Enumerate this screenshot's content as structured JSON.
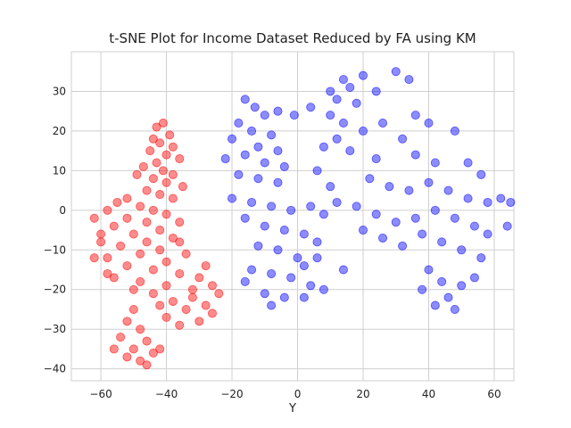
{
  "chart_data": {
    "type": "scatter",
    "title": "t-SNE Plot for Income Dataset Reduced by FA using KM",
    "xlabel": "Y",
    "ylabel": "",
    "xlim": [
      -69,
      66
    ],
    "ylim": [
      -43,
      40
    ],
    "xticks": [
      -60,
      -40,
      -20,
      0,
      20,
      40,
      60
    ],
    "yticks": [
      -40,
      -30,
      -20,
      -10,
      0,
      10,
      20,
      30
    ],
    "grid": true,
    "colors": {
      "red": "#ff0000",
      "blue": "#0000ff",
      "grid": "#cfcfcf"
    },
    "series": [
      {
        "color": "#ff0000",
        "points": [
          [
            -43,
            21
          ],
          [
            -41,
            22
          ],
          [
            -39,
            19
          ],
          [
            -44,
            18
          ],
          [
            -42,
            17
          ],
          [
            -38,
            16
          ],
          [
            -45,
            15
          ],
          [
            -40,
            14
          ],
          [
            -36,
            13
          ],
          [
            -43,
            12
          ],
          [
            -47,
            11
          ],
          [
            -41,
            10
          ],
          [
            -38,
            9
          ],
          [
            -49,
            9
          ],
          [
            -44,
            8
          ],
          [
            -40,
            7
          ],
          [
            -35,
            6
          ],
          [
            -46,
            5
          ],
          [
            -42,
            4
          ],
          [
            -52,
            3
          ],
          [
            -38,
            3
          ],
          [
            -55,
            2
          ],
          [
            -48,
            1
          ],
          [
            -44,
            0
          ],
          [
            -58,
            0
          ],
          [
            -40,
            -1
          ],
          [
            -52,
            -2
          ],
          [
            -62,
            -2
          ],
          [
            -46,
            -3
          ],
          [
            -36,
            -3
          ],
          [
            -56,
            -4
          ],
          [
            -42,
            -5
          ],
          [
            -50,
            -6
          ],
          [
            -60,
            -6
          ],
          [
            -38,
            -7
          ],
          [
            -46,
            -8
          ],
          [
            -54,
            -9
          ],
          [
            -42,
            -10
          ],
          [
            -34,
            -11
          ],
          [
            -48,
            -11
          ],
          [
            -58,
            -12
          ],
          [
            -40,
            -13
          ],
          [
            -52,
            -14
          ],
          [
            -44,
            -15
          ],
          [
            -36,
            -16
          ],
          [
            -56,
            -17
          ],
          [
            -48,
            -18
          ],
          [
            -40,
            -19
          ],
          [
            -30,
            -17
          ],
          [
            -26,
            -19
          ],
          [
            -24,
            -21
          ],
          [
            -32,
            -22
          ],
          [
            -28,
            -24
          ],
          [
            -38,
            -23
          ],
          [
            -44,
            -21
          ],
          [
            -34,
            -25
          ],
          [
            -26,
            -26
          ],
          [
            -40,
            -27
          ],
          [
            -30,
            -28
          ],
          [
            -36,
            -29
          ],
          [
            -50,
            -25
          ],
          [
            -52,
            -28
          ],
          [
            -48,
            -30
          ],
          [
            -54,
            -32
          ],
          [
            -46,
            -33
          ],
          [
            -50,
            -35
          ],
          [
            -56,
            -35
          ],
          [
            -44,
            -36
          ],
          [
            -48,
            -38
          ],
          [
            -52,
            -37
          ],
          [
            -46,
            -39
          ],
          [
            -42,
            -35
          ],
          [
            -60,
            -8
          ],
          [
            -62,
            -12
          ],
          [
            -58,
            -16
          ],
          [
            -50,
            -20
          ],
          [
            -42,
            -24
          ],
          [
            -32,
            -20
          ],
          [
            -28,
            -14
          ],
          [
            -36,
            -8
          ]
        ]
      },
      {
        "color": "#0000ff",
        "points": [
          [
            -16,
            28
          ],
          [
            -13,
            26
          ],
          [
            -10,
            24
          ],
          [
            -18,
            22
          ],
          [
            -14,
            20
          ],
          [
            -8,
            19
          ],
          [
            -20,
            18
          ],
          [
            -12,
            16
          ],
          [
            -6,
            15
          ],
          [
            -16,
            14
          ],
          [
            -22,
            13
          ],
          [
            -10,
            12
          ],
          [
            -4,
            11
          ],
          [
            -18,
            9
          ],
          [
            -12,
            8
          ],
          [
            -6,
            7
          ],
          [
            -20,
            3
          ],
          [
            -14,
            2
          ],
          [
            -8,
            1
          ],
          [
            -2,
            0
          ],
          [
            4,
            1
          ],
          [
            8,
            -1
          ],
          [
            -16,
            -2
          ],
          [
            -10,
            -4
          ],
          [
            -4,
            -5
          ],
          [
            2,
            -6
          ],
          [
            6,
            -8
          ],
          [
            -12,
            -9
          ],
          [
            -6,
            -10
          ],
          [
            0,
            -12
          ],
          [
            -14,
            -15
          ],
          [
            -8,
            -16
          ],
          [
            -2,
            -17
          ],
          [
            4,
            -19
          ],
          [
            -10,
            -21
          ],
          [
            -4,
            -22
          ],
          [
            -16,
            -18
          ],
          [
            2,
            -14
          ],
          [
            -8,
            -24
          ],
          [
            6,
            -12
          ],
          [
            10,
            30
          ],
          [
            14,
            33
          ],
          [
            12,
            28
          ],
          [
            16,
            31
          ],
          [
            20,
            34
          ],
          [
            24,
            30
          ],
          [
            30,
            35
          ],
          [
            34,
            33
          ],
          [
            18,
            27
          ],
          [
            10,
            24
          ],
          [
            14,
            22
          ],
          [
            20,
            20
          ],
          [
            26,
            22
          ],
          [
            36,
            24
          ],
          [
            40,
            22
          ],
          [
            32,
            18
          ],
          [
            12,
            18
          ],
          [
            16,
            15
          ],
          [
            24,
            13
          ],
          [
            36,
            14
          ],
          [
            42,
            12
          ],
          [
            48,
            20
          ],
          [
            52,
            12
          ],
          [
            56,
            9
          ],
          [
            22,
            8
          ],
          [
            28,
            6
          ],
          [
            34,
            5
          ],
          [
            40,
            7
          ],
          [
            46,
            5
          ],
          [
            52,
            3
          ],
          [
            58,
            2
          ],
          [
            62,
            3
          ],
          [
            65,
            2
          ],
          [
            18,
            1
          ],
          [
            24,
            -1
          ],
          [
            30,
            -3
          ],
          [
            36,
            -2
          ],
          [
            42,
            0
          ],
          [
            48,
            -2
          ],
          [
            54,
            -4
          ],
          [
            58,
            -6
          ],
          [
            20,
            -5
          ],
          [
            26,
            -7
          ],
          [
            32,
            -9
          ],
          [
            38,
            -6
          ],
          [
            44,
            -8
          ],
          [
            50,
            -10
          ],
          [
            56,
            -12
          ],
          [
            64,
            -4
          ],
          [
            40,
            -15
          ],
          [
            44,
            -18
          ],
          [
            38,
            -20
          ],
          [
            46,
            -22
          ],
          [
            50,
            -19
          ],
          [
            42,
            -24
          ],
          [
            48,
            -25
          ],
          [
            54,
            -17
          ],
          [
            -6,
            25
          ],
          [
            -1,
            24
          ],
          [
            4,
            26
          ],
          [
            8,
            16
          ],
          [
            6,
            10
          ],
          [
            10,
            6
          ],
          [
            12,
            2
          ],
          [
            14,
            -15
          ],
          [
            8,
            -20
          ],
          [
            2,
            -22
          ]
        ]
      }
    ]
  }
}
